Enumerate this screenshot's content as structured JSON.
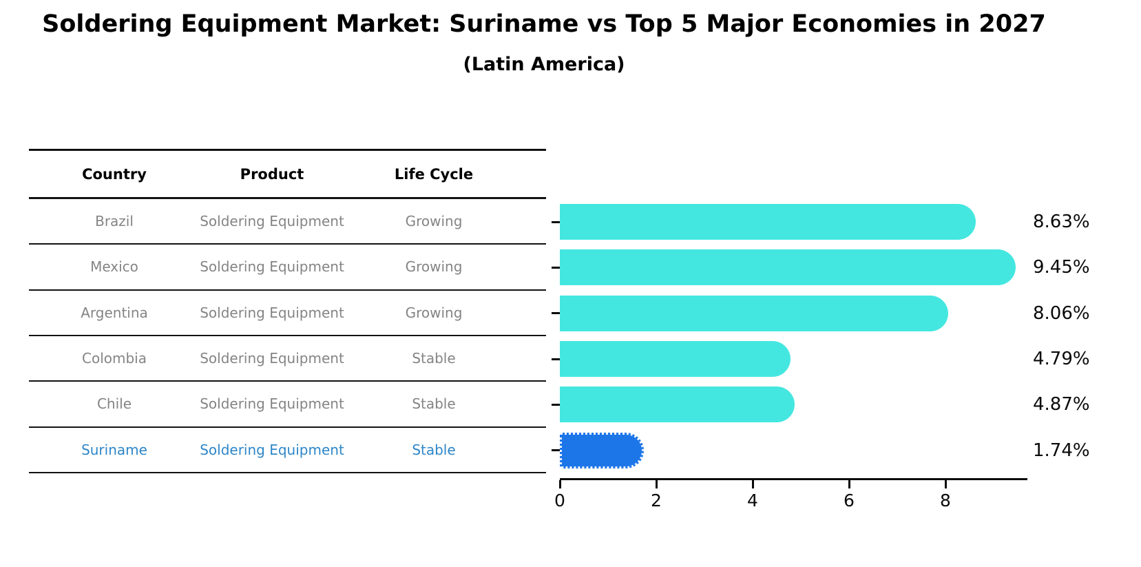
{
  "header": {
    "title": "Soldering Equipment Market: Suriname vs Top 5 Major Economies in 2027",
    "subtitle": "(Latin America)"
  },
  "table": {
    "headers": [
      "Country",
      "Product",
      "Life Cycle"
    ],
    "rows": [
      {
        "country": "Brazil",
        "product": "Soldering Equipment",
        "life_cycle": "Growing",
        "highlight": false
      },
      {
        "country": "Mexico",
        "product": "Soldering Equipment",
        "life_cycle": "Growing",
        "highlight": false
      },
      {
        "country": "Argentina",
        "product": "Soldering Equipment",
        "life_cycle": "Growing",
        "highlight": false
      },
      {
        "country": "Colombia",
        "product": "Soldering Equipment",
        "life_cycle": "Stable",
        "highlight": false
      },
      {
        "country": "Chile",
        "product": "Soldering Equipment",
        "life_cycle": "Stable",
        "highlight": false
      },
      {
        "country": "Suriname",
        "product": "Soldering Equipment",
        "life_cycle": "Stable",
        "highlight": true
      }
    ],
    "highlight_text_color": "#2e86c8",
    "row_text_color": "#848484"
  },
  "chart_data": {
    "type": "bar",
    "orientation": "horizontal",
    "categories": [
      "Brazil",
      "Mexico",
      "Argentina",
      "Colombia",
      "Chile",
      "Suriname"
    ],
    "values": [
      8.63,
      9.45,
      8.06,
      4.79,
      4.87,
      1.74
    ],
    "value_labels": [
      "8.63%",
      "9.45%",
      "8.06%",
      "4.79%",
      "4.87%",
      "1.74%"
    ],
    "title": "Soldering Equipment Market: Suriname vs Top 5 Major Economies in 2027",
    "subtitle": "(Latin America)",
    "xlabel": "",
    "ylabel": "",
    "xlim": [
      0,
      9.7
    ],
    "xticks": [
      0,
      2,
      4,
      6,
      8
    ],
    "grid": false,
    "legend": false,
    "bar_color": "#44e7e0",
    "highlight_bar_color": "#1d76e8",
    "highlight_index": 5
  }
}
